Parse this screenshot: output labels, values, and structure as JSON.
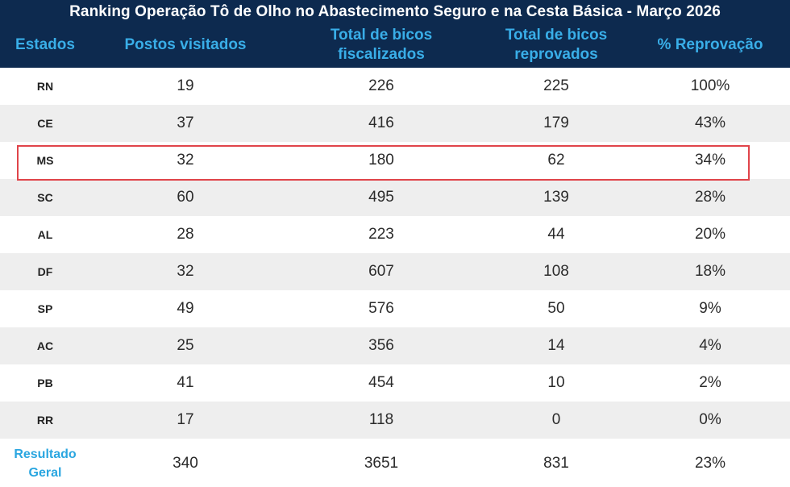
{
  "chart_data": {
    "type": "table",
    "title": "Ranking Operação Tô de Olho no Abastecimento Seguro e na Cesta Básica - Março 2026",
    "columns": [
      "Estados",
      "Postos visitados",
      "Total de bicos\nfiscalizados",
      "Total de bicos\nreprovados",
      "% Reprovação"
    ],
    "rows": [
      [
        "RN",
        "19",
        "226",
        "225",
        "100%"
      ],
      [
        "CE",
        "37",
        "416",
        "179",
        "43%"
      ],
      [
        "MS",
        "32",
        "180",
        "62",
        "34%"
      ],
      [
        "SC",
        "60",
        "495",
        "139",
        "28%"
      ],
      [
        "AL",
        "28",
        "223",
        "44",
        "20%"
      ],
      [
        "DF",
        "32",
        "607",
        "108",
        "18%"
      ],
      [
        "SP",
        "49",
        "576",
        "50",
        "9%"
      ],
      [
        "AC",
        "25",
        "356",
        "14",
        "4%"
      ],
      [
        "PB",
        "41",
        "454",
        "10",
        "2%"
      ],
      [
        "RR",
        "17",
        "118",
        "0",
        "0%"
      ]
    ],
    "total": {
      "label": "Resultado\nGeral",
      "values": [
        "340",
        "3651",
        "831",
        "23%"
      ]
    },
    "highlighted_row": "MS",
    "colors": {
      "header_bg": "#0d2a4f",
      "header_text": "#39aee8",
      "title_text": "#ffffff",
      "stripe": "#eeeeee",
      "highlight_border": "#e0444a"
    }
  }
}
